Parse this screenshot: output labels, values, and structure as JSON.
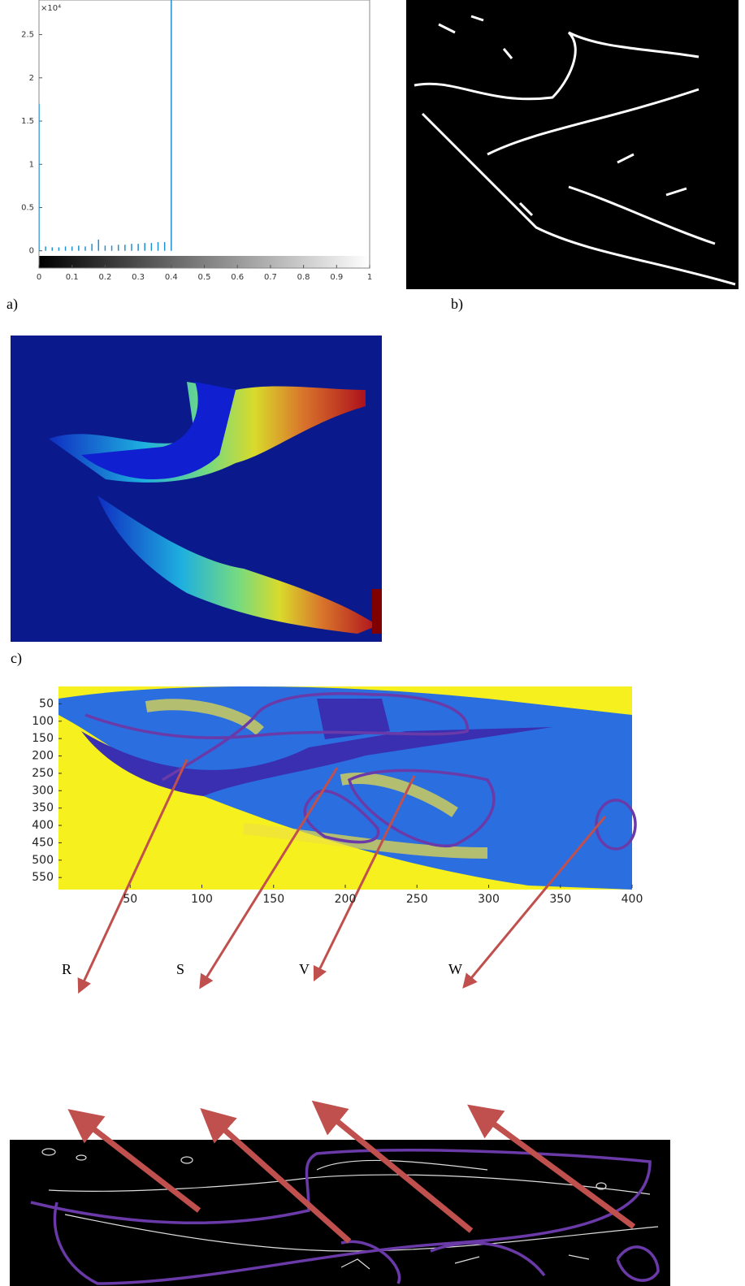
{
  "chart_data": [
    {
      "type": "bar",
      "y_multiplier": "×10⁴",
      "x": [
        0,
        0.02,
        0.04,
        0.06,
        0.08,
        0.1,
        0.12,
        0.14,
        0.16,
        0.18,
        0.2,
        0.22,
        0.24,
        0.26,
        0.28,
        0.3,
        0.32,
        0.34,
        0.36,
        0.38,
        0.4
      ],
      "values": [
        1.7,
        0.05,
        0.04,
        0.04,
        0.05,
        0.05,
        0.06,
        0.05,
        0.08,
        0.13,
        0.06,
        0.06,
        0.07,
        0.07,
        0.08,
        0.08,
        0.09,
        0.09,
        0.1,
        0.1,
        2.9
      ],
      "color": "#1f8fcf",
      "xlim": [
        0,
        1
      ],
      "xticks": [
        0,
        0.1,
        0.2,
        0.3,
        0.4,
        0.5,
        0.6,
        0.7,
        0.8,
        0.9,
        1
      ],
      "ylim": [
        -0.2,
        2.9
      ],
      "yticks": [
        0,
        0.5,
        1,
        1.5,
        2,
        2.5
      ]
    },
    {
      "type": "heatmap",
      "xlim": [
        0,
        400
      ],
      "xticks": [
        50,
        100,
        150,
        200,
        250,
        300,
        350,
        400
      ],
      "ylim": [
        0,
        580
      ],
      "yticks": [
        50,
        100,
        150,
        200,
        250,
        300,
        350,
        400,
        450,
        500,
        550
      ]
    }
  ],
  "panel_labels": [
    "a)",
    "b)",
    "c)"
  ],
  "region_labels": [
    "R",
    "S",
    "V",
    "W"
  ]
}
